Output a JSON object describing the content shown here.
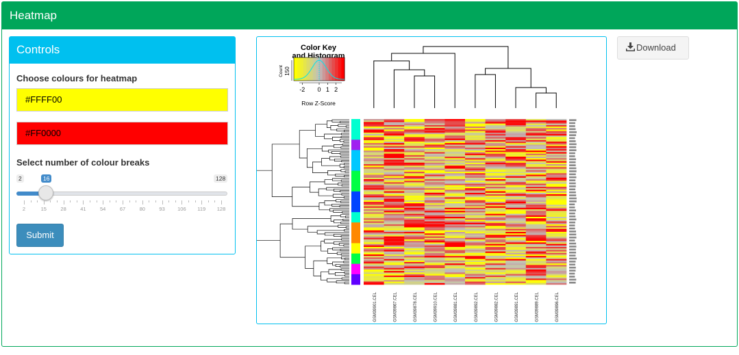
{
  "header": {
    "title": "Heatmap"
  },
  "controls": {
    "title": "Controls",
    "colours_label": "Choose colours for heatmap",
    "colour_low": "#FFFF00",
    "colour_high": "#FF0000",
    "breaks_label": "Select number of colour breaks",
    "slider": {
      "min_label": "2",
      "max_label": "128",
      "value_label": "16",
      "min": 2,
      "max": 128,
      "value": 16,
      "ticks": [
        "2",
        "15",
        "28",
        "41",
        "54",
        "67",
        "80",
        "93",
        "106",
        "119",
        "128"
      ]
    },
    "submit_label": "Submit"
  },
  "download": {
    "label": "Download",
    "icon": "download-icon"
  },
  "heatmap": {
    "color_key_title": "Color Key",
    "color_key_subtitle": "and Histogram",
    "count_label": "Count",
    "count_tick": "150",
    "z_ticks": [
      "-2",
      "0",
      "1",
      "2"
    ],
    "z_label": "Row Z-Score",
    "columns": [
      "GSM39901.CEL",
      "GSM39867.CEL",
      "GSM39878.CEL",
      "GSM39910.CEL",
      "GSM39881.CEL",
      "GSM39892.CEL",
      "GSM39882.CEL",
      "GSM39891.CEL",
      "GSM39889.CEL",
      "GSM39896.CEL"
    ],
    "colors": {
      "low": "#FFFF00",
      "mid": "#BEBEBE",
      "high": "#FF0000"
    }
  },
  "colors": {
    "header_green": "#00a65a",
    "box_cyan": "#00c0ef",
    "button_blue": "#3c8dbc"
  }
}
